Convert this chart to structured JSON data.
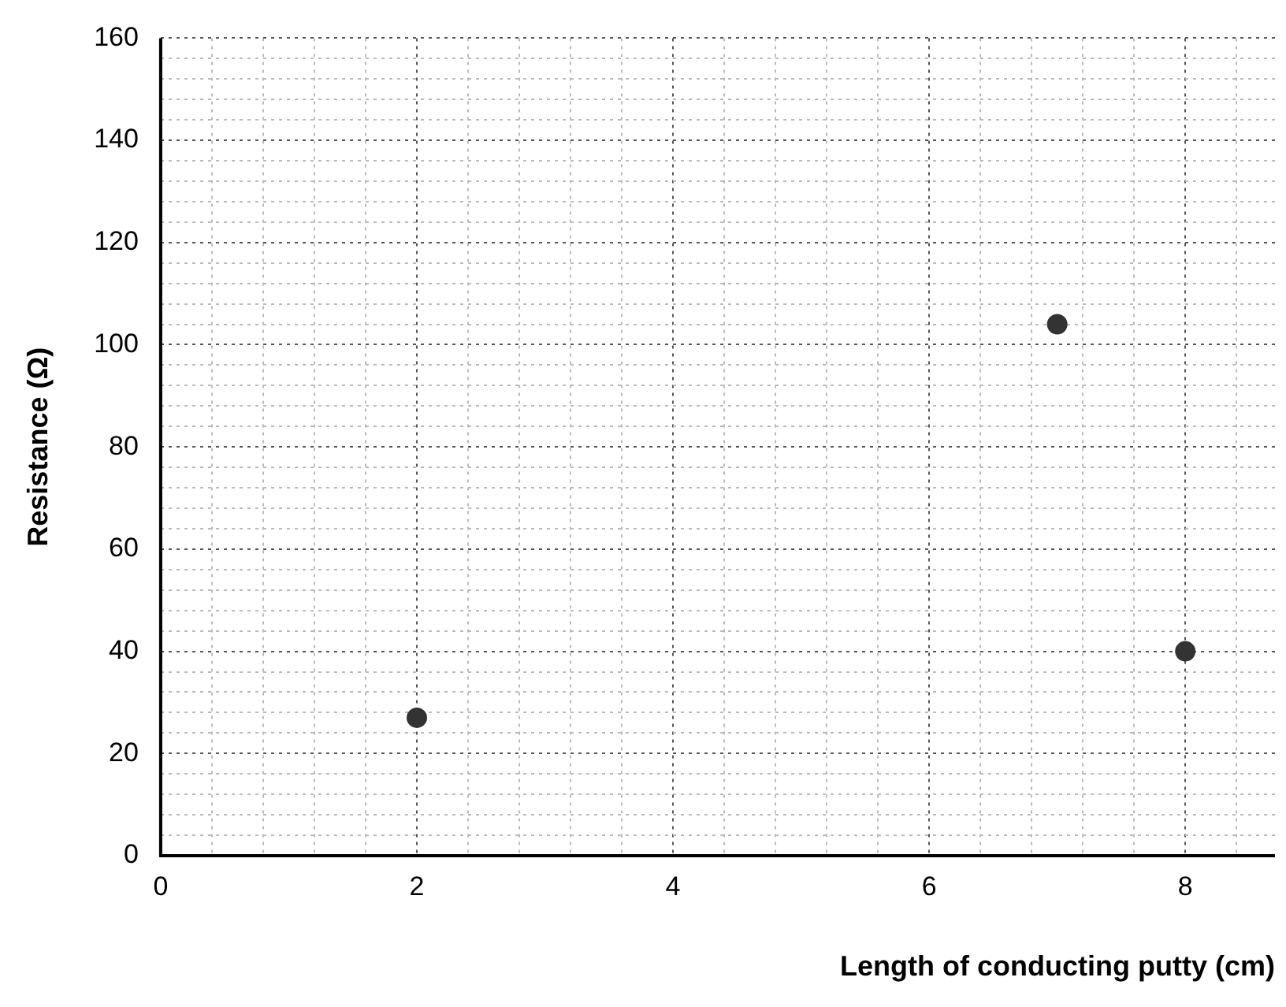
{
  "chart_data": {
    "type": "scatter",
    "xlabel": "Length of conducting putty (cm)",
    "ylabel": "Resistance (Ω)",
    "x": [
      2,
      7,
      8
    ],
    "series": [
      {
        "color": "#333333",
        "values": [
          27,
          104,
          40
        ]
      }
    ],
    "xlim": [
      0,
      8.7
    ],
    "xticks": [
      0,
      {
        "value": 0.4,
        "label": null
      },
      {
        "value": 0.8,
        "label": null
      },
      {
        "value": 1.2,
        "label": null
      },
      {
        "value": 1.6,
        "label": null
      },
      2,
      {
        "value": 2.4,
        "label": null
      },
      {
        "value": 2.8,
        "label": null
      },
      {
        "value": 3.2,
        "label": null
      },
      {
        "value": 3.6,
        "label": null
      },
      4,
      {
        "value": 4.4,
        "label": null
      },
      {
        "value": 4.8,
        "label": null
      },
      {
        "value": 5.2,
        "label": null
      },
      {
        "value": 5.6,
        "label": null
      },
      6,
      {
        "value": 6.4,
        "label": null
      },
      {
        "value": 6.8,
        "label": null
      },
      {
        "value": 7.2,
        "label": null
      },
      {
        "value": 7.6,
        "label": null
      },
      8,
      {
        "value": 8.4,
        "label": null
      }
    ],
    "ylim": [
      0,
      160
    ],
    "yticks": [
      0,
      {
        "value": 4,
        "label": null
      },
      {
        "value": 8,
        "label": null
      },
      {
        "value": 12,
        "label": null
      },
      {
        "value": 16,
        "label": null
      },
      20,
      {
        "value": 24,
        "label": null
      },
      {
        "value": 28,
        "label": null
      },
      {
        "value": 32,
        "label": null
      },
      {
        "value": 36,
        "label": null
      },
      40,
      {
        "value": 44,
        "label": null
      },
      {
        "value": 48,
        "label": null
      },
      {
        "value": 52,
        "label": null
      },
      {
        "value": 56,
        "label": null
      },
      60,
      {
        "value": 64,
        "label": null
      },
      {
        "value": 68,
        "label": null
      },
      {
        "value": 72,
        "label": null
      },
      {
        "value": 76,
        "label": null
      },
      80,
      {
        "value": 84,
        "label": null
      },
      {
        "value": 88,
        "label": null
      },
      {
        "value": 92,
        "label": null
      },
      {
        "value": 96,
        "label": null
      },
      100,
      {
        "value": 104,
        "label": null
      },
      {
        "value": 108,
        "label": null
      },
      {
        "value": 112,
        "label": null
      },
      {
        "value": 116,
        "label": null
      },
      120,
      {
        "value": 124,
        "label": null
      },
      {
        "value": 128,
        "label": null
      },
      {
        "value": 132,
        "label": null
      },
      {
        "value": 136,
        "label": null
      },
      140,
      {
        "value": 144,
        "label": null
      },
      {
        "value": 148,
        "label": null
      },
      {
        "value": 152,
        "label": null
      },
      {
        "value": 156,
        "label": null
      },
      160
    ],
    "grid": true,
    "legend": false,
    "marker": "circle"
  }
}
